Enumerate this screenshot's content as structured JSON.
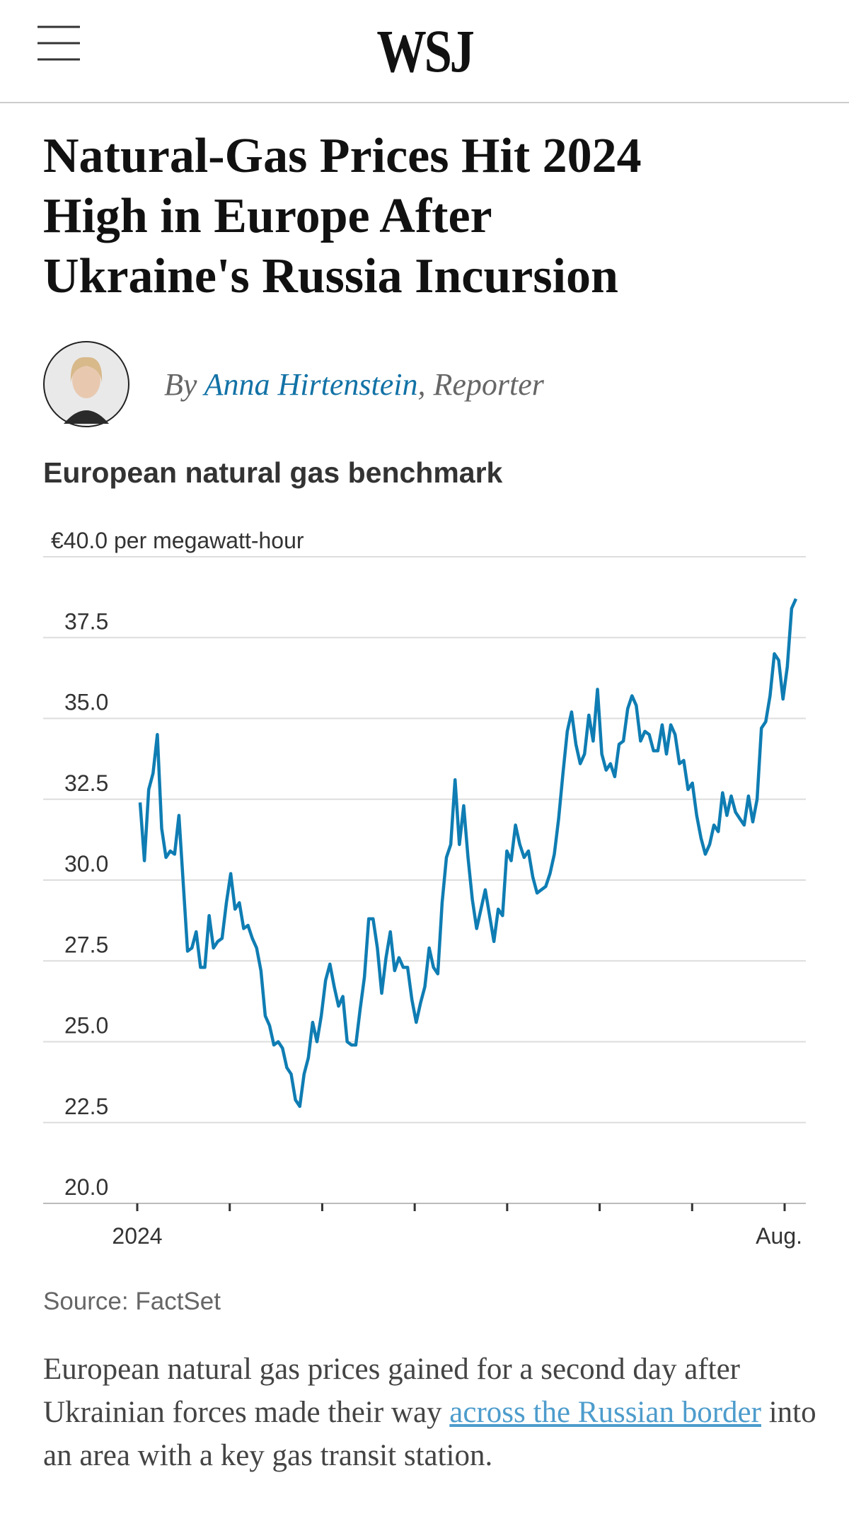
{
  "header": {
    "logo": "WSJ"
  },
  "article": {
    "headline": [
      "Natural-Gas Prices Hit 2024",
      "High in Europe After",
      "Ukraine's Russia Incursion"
    ],
    "byline": {
      "prefix": "By",
      "author": "Anna Hirtenstein",
      "role": ", Reporter"
    },
    "body": {
      "before": "European natural gas prices gained for a second day after Ukrainian forces made their way ",
      "link": "across the Russian border",
      "after": " into an area with a key gas transit station."
    }
  },
  "chart_data": {
    "type": "line",
    "title": "European natural gas benchmark",
    "source": "Source: FactSet",
    "color": "#0f7db3",
    "ylim": [
      20,
      40
    ],
    "yticks": [
      {
        "value": 20,
        "label": "20.0"
      },
      22.5,
      {
        "value": 25,
        "label": "25.0"
      },
      27.5,
      {
        "value": 30,
        "label": "30.0"
      },
      32.5,
      {
        "value": 35,
        "label": "35.0"
      },
      37.5,
      {
        "value": 40,
        "label": "€40.0 per megawatt-hour"
      }
    ],
    "x_tick_labels": [
      "2024",
      null,
      null,
      null,
      null,
      null,
      null,
      "Aug."
    ],
    "values": [
      32.4,
      30.6,
      32.8,
      33.3,
      34.5,
      31.6,
      30.7,
      30.9,
      30.8,
      32.0,
      29.9,
      27.8,
      27.9,
      28.4,
      27.3,
      27.3,
      28.9,
      27.9,
      28.1,
      28.2,
      29.3,
      30.2,
      29.1,
      29.3,
      28.5,
      28.6,
      28.2,
      27.9,
      27.2,
      25.8,
      25.5,
      24.9,
      25.0,
      24.8,
      24.2,
      24.0,
      23.2,
      23.0,
      24.0,
      24.5,
      25.6,
      25.0,
      25.8,
      26.9,
      27.4,
      26.7,
      26.1,
      26.4,
      25.0,
      24.9,
      24.9,
      26.0,
      27.0,
      28.8,
      28.8,
      27.9,
      26.5,
      27.6,
      28.4,
      27.2,
      27.6,
      27.3,
      27.3,
      26.3,
      25.6,
      26.2,
      26.7,
      27.9,
      27.3,
      27.1,
      29.3,
      30.7,
      31.1,
      33.1,
      31.1,
      32.3,
      30.7,
      29.4,
      28.5,
      29.1,
      29.7,
      28.9,
      28.1,
      29.1,
      28.9,
      30.9,
      30.6,
      31.7,
      31.1,
      30.7,
      30.9,
      30.1,
      29.6,
      29.7,
      29.8,
      30.2,
      30.8,
      31.9,
      33.3,
      34.6,
      35.2,
      34.2,
      33.6,
      33.9,
      35.1,
      34.3,
      35.9,
      33.9,
      33.4,
      33.6,
      33.2,
      34.2,
      34.3,
      35.3,
      35.7,
      35.4,
      34.3,
      34.6,
      34.5,
      34.0,
      34.0,
      34.8,
      33.9,
      34.8,
      34.5,
      33.6,
      33.7,
      32.8,
      33.0,
      32.0,
      31.3,
      30.8,
      31.1,
      31.7,
      31.5,
      32.7,
      32.0,
      32.6,
      32.1,
      31.9,
      31.7,
      32.6,
      31.8,
      32.5,
      34.7,
      34.9,
      35.7,
      37.0,
      36.8,
      35.6,
      36.6,
      38.4,
      38.7
    ]
  }
}
